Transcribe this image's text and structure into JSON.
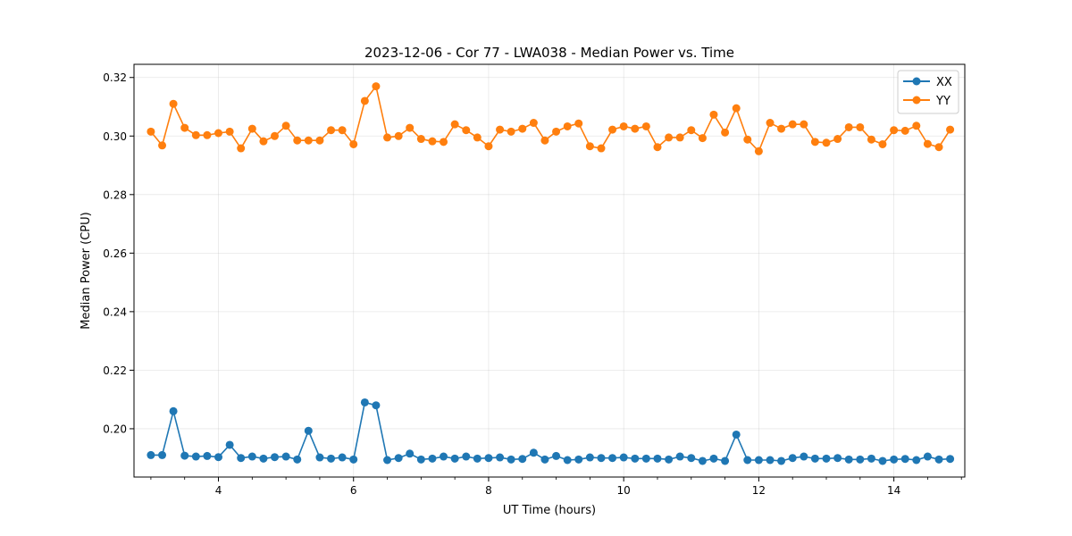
{
  "chart_data": {
    "type": "line",
    "title": "2023-12-06 - Cor 77 - LWA038 - Median Power vs. Time",
    "xlabel": "UT Time (hours)",
    "ylabel": "Median Power (CPU)",
    "xlim": [
      2.75,
      15.05
    ],
    "ylim": [
      0.1835,
      0.3245
    ],
    "xticks": [
      4,
      6,
      8,
      10,
      12,
      14
    ],
    "yticks": [
      0.2,
      0.22,
      0.24,
      0.26,
      0.28,
      0.3,
      0.32
    ],
    "xtick_labels": [
      "4",
      "6",
      "8",
      "10",
      "12",
      "14"
    ],
    "ytick_labels": [
      "0.20",
      "0.22",
      "0.24",
      "0.26",
      "0.28",
      "0.30",
      "0.32"
    ],
    "grid": true,
    "legend_position": "top-right",
    "x": [
      3.0,
      3.167,
      3.333,
      3.5,
      3.667,
      3.833,
      4.0,
      4.167,
      4.333,
      4.5,
      4.667,
      4.833,
      5.0,
      5.167,
      5.333,
      5.5,
      5.667,
      5.833,
      6.0,
      6.167,
      6.333,
      6.5,
      6.667,
      6.833,
      7.0,
      7.167,
      7.333,
      7.5,
      7.667,
      7.833,
      8.0,
      8.167,
      8.333,
      8.5,
      8.667,
      8.833,
      9.0,
      9.167,
      9.333,
      9.5,
      9.667,
      9.833,
      10.0,
      10.167,
      10.333,
      10.5,
      10.667,
      10.833,
      11.0,
      11.167,
      11.333,
      11.5,
      11.667,
      11.833,
      12.0,
      12.167,
      12.333,
      12.5,
      12.667,
      12.833,
      13.0,
      13.167,
      13.333,
      13.5,
      13.667,
      13.833,
      14.0,
      14.167,
      14.333,
      14.5,
      14.667,
      14.833
    ],
    "series": [
      {
        "name": "XX",
        "color": "#1f77b4",
        "values": [
          0.191,
          0.191,
          0.206,
          0.1908,
          0.1905,
          0.1907,
          0.1903,
          0.1945,
          0.19,
          0.1905,
          0.1898,
          0.1903,
          0.1905,
          0.1895,
          0.1993,
          0.1902,
          0.1898,
          0.1902,
          0.1895,
          0.209,
          0.208,
          0.1893,
          0.19,
          0.1915,
          0.1895,
          0.1898,
          0.1905,
          0.1898,
          0.1905,
          0.1898,
          0.19,
          0.1902,
          0.1895,
          0.1897,
          0.1918,
          0.1895,
          0.1907,
          0.1893,
          0.1895,
          0.1902,
          0.19,
          0.19,
          0.1902,
          0.1898,
          0.1898,
          0.1898,
          0.1895,
          0.1905,
          0.19,
          0.189,
          0.1898,
          0.189,
          0.198,
          0.1893,
          0.1893,
          0.1893,
          0.189,
          0.19,
          0.1905,
          0.1898,
          0.1898,
          0.19,
          0.1895,
          0.1895,
          0.1898,
          0.189,
          0.1895,
          0.1897,
          0.1893,
          0.1905,
          0.1895,
          0.1897
        ]
      },
      {
        "name": "YY",
        "color": "#ff7f0e",
        "values": [
          0.3015,
          0.2968,
          0.311,
          0.3028,
          0.3003,
          0.3003,
          0.301,
          0.3015,
          0.2958,
          0.3025,
          0.2982,
          0.3,
          0.3035,
          0.2985,
          0.2985,
          0.2985,
          0.302,
          0.302,
          0.2972,
          0.312,
          0.317,
          0.2995,
          0.3,
          0.3028,
          0.299,
          0.2982,
          0.298,
          0.304,
          0.302,
          0.2995,
          0.2965,
          0.3022,
          0.3015,
          0.3025,
          0.3045,
          0.2985,
          0.3015,
          0.3033,
          0.3043,
          0.2965,
          0.2958,
          0.3022,
          0.3033,
          0.3025,
          0.3033,
          0.2962,
          0.2995,
          0.2995,
          0.302,
          0.2993,
          0.3073,
          0.3012,
          0.3095,
          0.2988,
          0.2948,
          0.3045,
          0.3025,
          0.304,
          0.304,
          0.298,
          0.2977,
          0.299,
          0.303,
          0.303,
          0.2988,
          0.2972,
          0.302,
          0.3018,
          0.3035,
          0.2973,
          0.2962,
          0.3022
        ]
      }
    ]
  }
}
